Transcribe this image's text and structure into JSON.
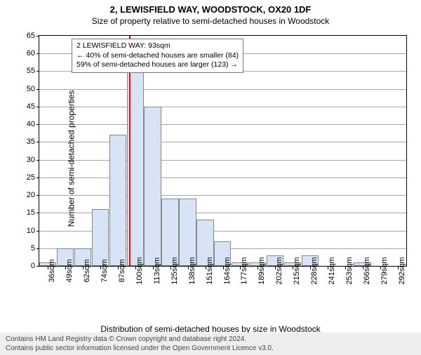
{
  "title": "2, LEWISFIELD WAY, WOODSTOCK, OX20 1DF",
  "subtitle": "Size of property relative to semi-detached houses in Woodstock",
  "y_axis_label": "Number of semi-detached properties",
  "x_axis_label": "Distribution of semi-detached houses by size in Woodstock",
  "footer_line1": "Contains HM Land Registry data © Crown copyright and database right 2024.",
  "footer_line2": "Contains public sector information licensed under the Open Government Licence v3.0.",
  "chart": {
    "type": "histogram",
    "ylim": [
      0,
      65
    ],
    "ytick_step": 5,
    "xticks": [
      "36sqm",
      "49sqm",
      "62sqm",
      "74sqm",
      "87sqm",
      "100sqm",
      "113sqm",
      "125sqm",
      "138sqm",
      "151sqm",
      "164sqm",
      "177sqm",
      "189sqm",
      "202sqm",
      "215sqm",
      "228sqm",
      "241sqm",
      "253sqm",
      "266sqm",
      "279sqm",
      "292sqm"
    ],
    "values": [
      1,
      5,
      5,
      16,
      37,
      55,
      45,
      19,
      19,
      13,
      7,
      1,
      1,
      3,
      1,
      3,
      0,
      0,
      1,
      0,
      0
    ],
    "bar_fill": "#d6e4f5",
    "bar_stroke": "#888888",
    "background_color": "#ffffff",
    "gridline_color": "#000000",
    "axis_color": "#000000",
    "marker": {
      "position_index": 5.15,
      "color": "#ff0000"
    },
    "annotation": {
      "line1": "2 LEWISFIELD WAY: 93sqm",
      "line2": "← 40% of semi-detached houses are smaller (84)",
      "line3": "59% of semi-detached houses are larger (123) →"
    },
    "label_fontsize": 11
  }
}
